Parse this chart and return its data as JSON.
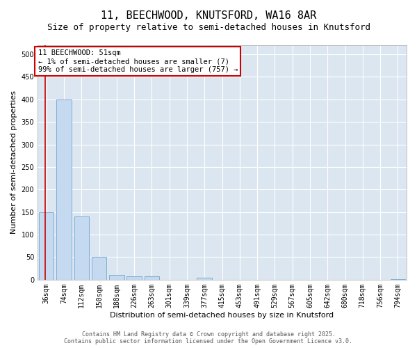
{
  "title_line1": "11, BEECHWOOD, KNUTSFORD, WA16 8AR",
  "title_line2": "Size of property relative to semi-detached houses in Knutsford",
  "xlabel": "Distribution of semi-detached houses by size in Knutsford",
  "ylabel": "Number of semi-detached properties",
  "categories": [
    "36sqm",
    "74sqm",
    "112sqm",
    "150sqm",
    "188sqm",
    "226sqm",
    "263sqm",
    "301sqm",
    "339sqm",
    "377sqm",
    "415sqm",
    "453sqm",
    "491sqm",
    "529sqm",
    "567sqm",
    "605sqm",
    "642sqm",
    "680sqm",
    "718sqm",
    "756sqm",
    "794sqm"
  ],
  "values": [
    150,
    400,
    140,
    50,
    10,
    8,
    7,
    0,
    0,
    5,
    0,
    0,
    0,
    0,
    0,
    0,
    0,
    0,
    0,
    0,
    2
  ],
  "bar_color": "#c5d9f0",
  "bar_edge_color": "#7bafd4",
  "red_line_x": -0.08,
  "annotation_text": "11 BEECHWOOD: 51sqm\n← 1% of semi-detached houses are smaller (7)\n99% of semi-detached houses are larger (757) →",
  "ylim": [
    0,
    520
  ],
  "yticks": [
    0,
    50,
    100,
    150,
    200,
    250,
    300,
    350,
    400,
    450,
    500
  ],
  "background_color": "#dce6f1",
  "footer_text": "Contains HM Land Registry data © Crown copyright and database right 2025.\nContains public sector information licensed under the Open Government Licence v3.0.",
  "title_fontsize": 11,
  "subtitle_fontsize": 9,
  "axis_label_fontsize": 8,
  "tick_fontsize": 7,
  "annotation_fontsize": 7.5
}
